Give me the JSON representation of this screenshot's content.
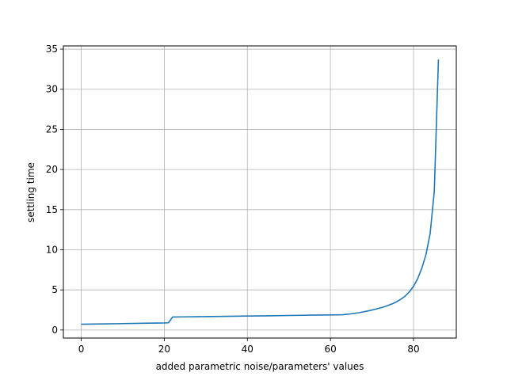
{
  "chart_data": {
    "type": "line",
    "title": "",
    "xlabel": "added parametric noise/parameters' values",
    "ylabel": "settling time",
    "xlim": [
      -4.3,
      90.3
    ],
    "ylim": [
      -1.0,
      35.4
    ],
    "xticks": [
      0,
      20,
      40,
      60,
      80
    ],
    "yticks": [
      0,
      5,
      10,
      15,
      20,
      25,
      30,
      35
    ],
    "grid": true,
    "line_color": "#1f77b4",
    "series": [
      {
        "x": [
          0,
          5,
          10,
          15,
          20,
          21,
          22,
          25,
          30,
          35,
          40,
          45,
          50,
          55,
          60,
          63,
          65,
          67,
          69,
          71,
          73,
          75,
          76,
          77,
          78,
          79,
          80,
          81,
          82,
          83,
          84,
          85,
          86
        ],
        "y": [
          0.72,
          0.76,
          0.8,
          0.84,
          0.88,
          0.9,
          1.62,
          1.64,
          1.67,
          1.71,
          1.74,
          1.77,
          1.81,
          1.85,
          1.88,
          1.9,
          2.02,
          2.17,
          2.37,
          2.61,
          2.9,
          3.29,
          3.54,
          3.85,
          4.23,
          4.76,
          5.45,
          6.4,
          7.7,
          9.4,
          12.0,
          17.3,
          33.7
        ]
      }
    ]
  }
}
